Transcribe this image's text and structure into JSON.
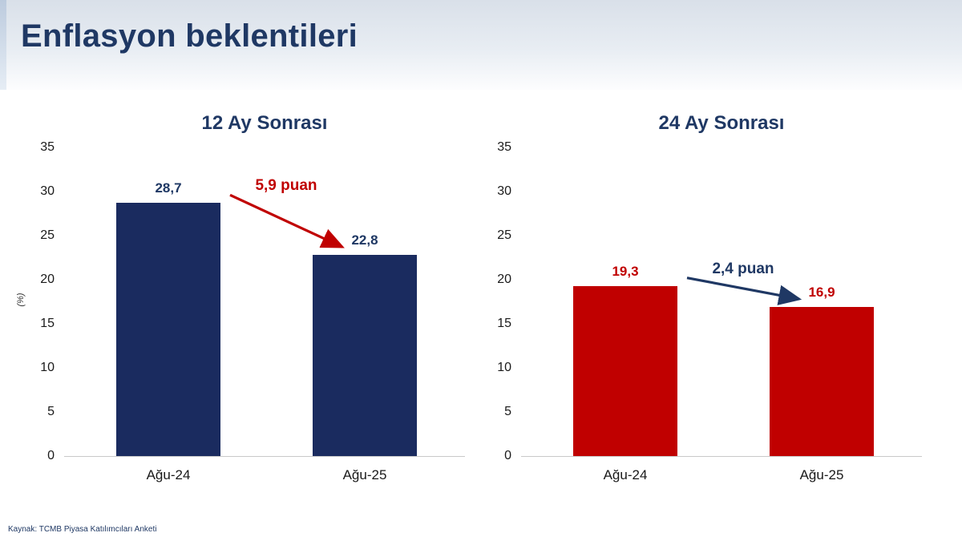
{
  "header": {
    "title": "Enflasyon beklentileri"
  },
  "footer": {
    "source": "Kaynak: TCMB Piyasa Katılımcıları Anketi"
  },
  "colors": {
    "navy": "#1f3864",
    "red": "#c00000",
    "bar_navy": "#1a2b5f",
    "bar_red": "#c00000",
    "axis_text": "#1a1a1a",
    "baseline": "#c9c9c9",
    "header_band": "#d9e0e9"
  },
  "chart_data": [
    {
      "type": "bar",
      "title": "12 Ay Sonrası",
      "categories": [
        "Ağu-24",
        "Ağu-25"
      ],
      "values": [
        28.7,
        22.8
      ],
      "value_labels": [
        "28,7",
        "22,8"
      ],
      "bar_color": "#1a2b5f",
      "value_color": "#1f3864",
      "ylabel": "(%)",
      "ylim": [
        0,
        35
      ],
      "yticks": [
        35,
        30,
        25,
        20,
        15,
        10,
        5,
        0
      ],
      "grid": false,
      "legend": "none",
      "annotation": {
        "label": "5,9 puan",
        "color": "#c00000"
      }
    },
    {
      "type": "bar",
      "title": "24 Ay Sonrası",
      "categories": [
        "Ağu-24",
        "Ağu-25"
      ],
      "values": [
        19.3,
        16.9
      ],
      "value_labels": [
        "19,3",
        "16,9"
      ],
      "bar_color": "#c00000",
      "value_color": "#c00000",
      "ylabel": "",
      "ylim": [
        0,
        35
      ],
      "yticks": [
        35,
        30,
        25,
        20,
        15,
        10,
        5,
        0
      ],
      "grid": false,
      "legend": "none",
      "annotation": {
        "label": "2,4 puan",
        "color": "#1f3864"
      }
    }
  ]
}
